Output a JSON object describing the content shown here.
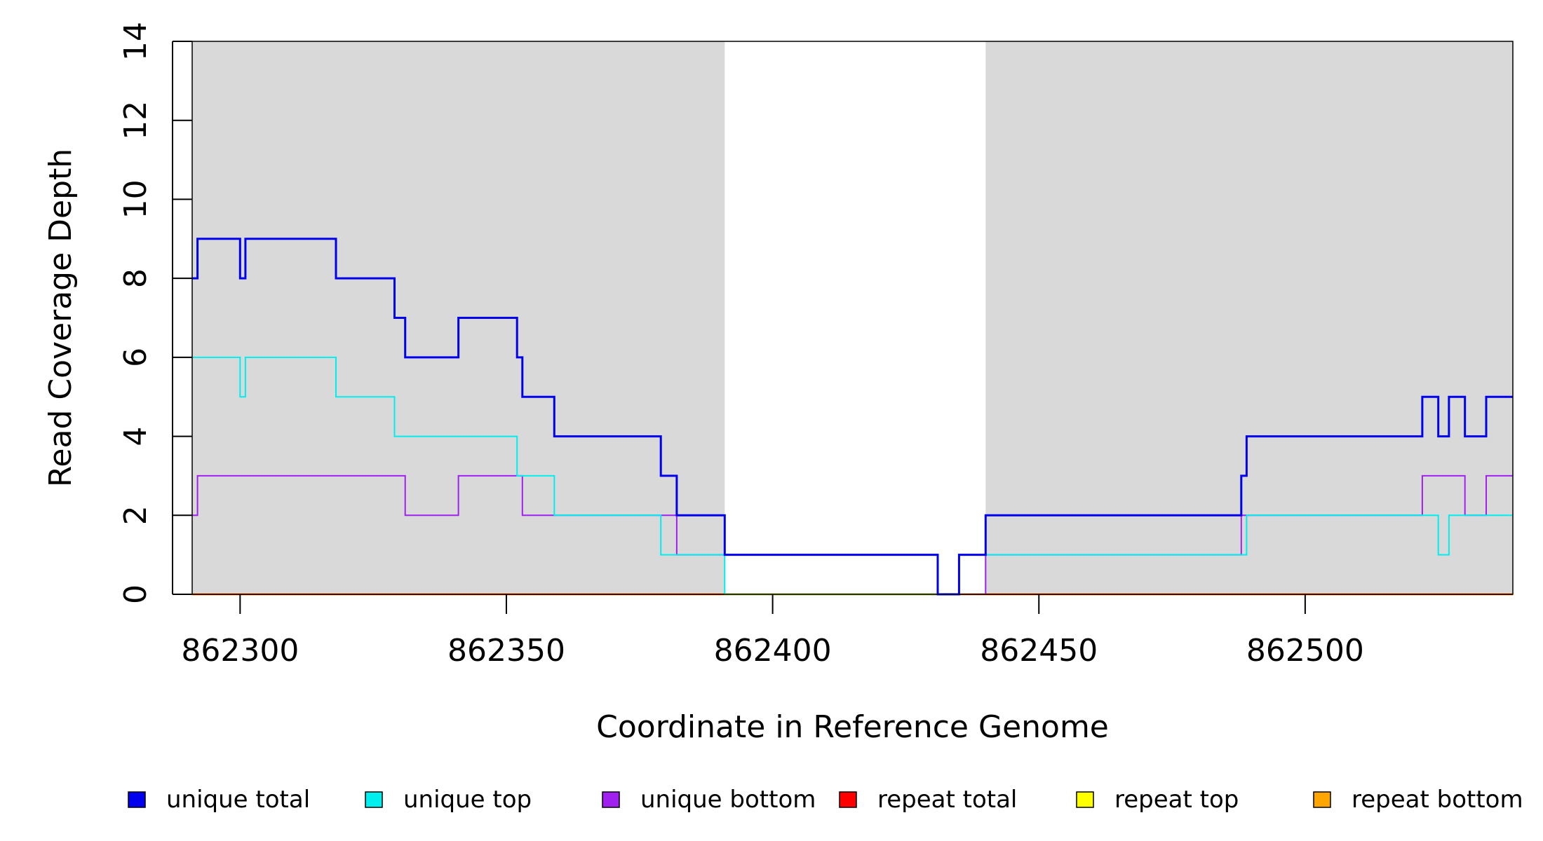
{
  "chart_data": {
    "type": "line",
    "xlabel": "Coordinate in Reference Genome",
    "ylabel": "Read Coverage Depth",
    "xlim": [
      862291,
      862539
    ],
    "ylim": [
      0,
      14
    ],
    "x_ticks": [
      862300,
      862350,
      862400,
      862450,
      862500
    ],
    "y_ticks": [
      0,
      2,
      4,
      6,
      8,
      10,
      12,
      14
    ],
    "background": {
      "shaded_color": "#d9d9d9",
      "unshaded_range": [
        862391,
        862440
      ]
    },
    "legend_position": "bottom",
    "series": [
      {
        "name": "unique total",
        "color": "#0000ee",
        "line_width": 3,
        "points": [
          [
            862291,
            8
          ],
          [
            862292,
            9
          ],
          [
            862300,
            8
          ],
          [
            862301,
            9
          ],
          [
            862318,
            8
          ],
          [
            862329,
            7
          ],
          [
            862331,
            6
          ],
          [
            862341,
            7
          ],
          [
            862352,
            6
          ],
          [
            862353,
            5
          ],
          [
            862359,
            4
          ],
          [
            862379,
            3
          ],
          [
            862382,
            2
          ],
          [
            862391,
            1
          ],
          [
            862431,
            0
          ],
          [
            862435,
            1
          ],
          [
            862440,
            2
          ],
          [
            862488,
            3
          ],
          [
            862489,
            4
          ],
          [
            862522,
            5
          ],
          [
            862525,
            4
          ],
          [
            862527,
            5
          ],
          [
            862530,
            4
          ],
          [
            862534,
            5
          ],
          [
            862539,
            5
          ]
        ]
      },
      {
        "name": "unique top",
        "color": "#00eeee",
        "line_width": 2,
        "points": [
          [
            862291,
            6
          ],
          [
            862300,
            5
          ],
          [
            862301,
            6
          ],
          [
            862318,
            5
          ],
          [
            862329,
            4
          ],
          [
            862352,
            3
          ],
          [
            862359,
            2
          ],
          [
            862379,
            1
          ],
          [
            862391,
            0
          ],
          [
            862435,
            1
          ],
          [
            862440,
            1
          ],
          [
            862489,
            2
          ],
          [
            862525,
            1
          ],
          [
            862527,
            2
          ],
          [
            862539,
            2
          ]
        ]
      },
      {
        "name": "unique bottom",
        "color": "#a020f0",
        "line_width": 2,
        "points": [
          [
            862291,
            2
          ],
          [
            862292,
            3
          ],
          [
            862331,
            2
          ],
          [
            862341,
            3
          ],
          [
            862353,
            2
          ],
          [
            862382,
            1
          ],
          [
            862431,
            0
          ],
          [
            862440,
            1
          ],
          [
            862488,
            2
          ],
          [
            862522,
            3
          ],
          [
            862530,
            2
          ],
          [
            862534,
            3
          ],
          [
            862539,
            3
          ]
        ]
      },
      {
        "name": "repeat total",
        "color": "#ff0000",
        "line_width": 2,
        "points": [
          [
            862291,
            0
          ],
          [
            862539,
            0
          ]
        ]
      },
      {
        "name": "repeat top",
        "color": "#ffff00",
        "line_width": 2,
        "points": [
          [
            862291,
            0
          ],
          [
            862539,
            0
          ]
        ]
      },
      {
        "name": "repeat bottom",
        "color": "#ffa500",
        "line_width": 3,
        "points": [
          [
            862291,
            0
          ],
          [
            862539,
            0
          ]
        ]
      }
    ]
  }
}
